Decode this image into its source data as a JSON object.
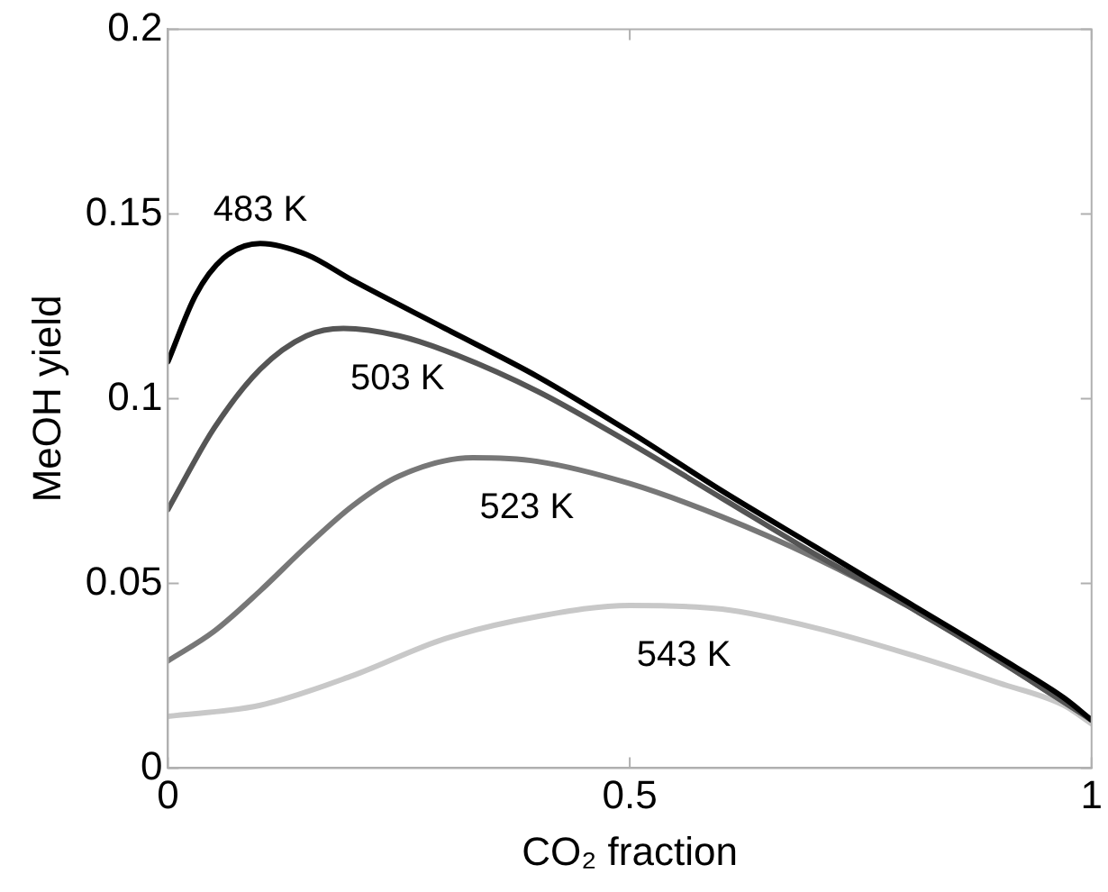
{
  "chart_data": {
    "type": "line",
    "xlabel": "CO₂ fraction",
    "ylabel": "MeOH yield",
    "xlim": [
      0,
      1
    ],
    "xticks": [
      0,
      0.5,
      1
    ],
    "ylim": [
      0,
      0.2
    ],
    "yticks": [
      0,
      0.05,
      0.1,
      0.15,
      0.2
    ],
    "grid": false,
    "legend": false,
    "marker": "none",
    "line_style": "solid",
    "series": [
      {
        "name": "483 K",
        "color": "#000000",
        "x": [
          0,
          0.03,
          0.06,
          0.1,
          0.15,
          0.2,
          0.3,
          0.4,
          0.5,
          0.6,
          0.7,
          0.8,
          0.9,
          0.97,
          1
        ],
        "values": [
          0.11,
          0.128,
          0.138,
          0.142,
          0.139,
          0.132,
          0.119,
          0.106,
          0.091,
          0.075,
          0.06,
          0.045,
          0.03,
          0.019,
          0.013
        ]
      },
      {
        "name": "503 K",
        "color": "#555555",
        "x": [
          0,
          0.05,
          0.1,
          0.15,
          0.19,
          0.25,
          0.3,
          0.4,
          0.5,
          0.6,
          0.7,
          0.8,
          0.9,
          1
        ],
        "values": [
          0.07,
          0.092,
          0.108,
          0.117,
          0.119,
          0.117,
          0.113,
          0.102,
          0.088,
          0.073,
          0.058,
          0.044,
          0.029,
          0.013
        ]
      },
      {
        "name": "523 K",
        "color": "#777777",
        "x": [
          0,
          0.05,
          0.1,
          0.15,
          0.2,
          0.25,
          0.33,
          0.4,
          0.5,
          0.6,
          0.7,
          0.8,
          0.9,
          1
        ],
        "values": [
          0.029,
          0.037,
          0.048,
          0.06,
          0.071,
          0.079,
          0.084,
          0.083,
          0.077,
          0.068,
          0.057,
          0.044,
          0.029,
          0.013
        ]
      },
      {
        "name": "543 K",
        "color": "#c8c8c8",
        "x": [
          0,
          0.1,
          0.2,
          0.3,
          0.4,
          0.5,
          0.6,
          0.7,
          0.8,
          0.9,
          0.97,
          1
        ],
        "values": [
          0.014,
          0.017,
          0.025,
          0.035,
          0.041,
          0.044,
          0.043,
          0.038,
          0.031,
          0.023,
          0.017,
          0.012
        ]
      }
    ]
  }
}
